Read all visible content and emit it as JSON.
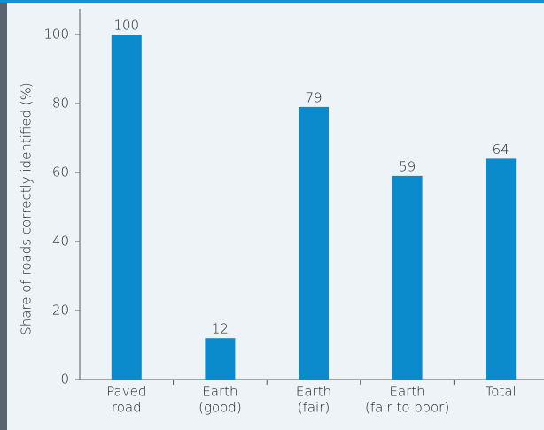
{
  "chart_data": {
    "type": "bar",
    "y_label": "Share of roads correctly identified (%)",
    "categories": [
      [
        "Paved",
        "road"
      ],
      [
        "Earth",
        "(good)"
      ],
      [
        "Earth",
        "(fair)"
      ],
      [
        "Earth",
        "(fair to poor)"
      ],
      [
        "Total"
      ]
    ],
    "values": [
      100,
      12,
      79,
      59,
      64
    ],
    "color": "#0b8bcc",
    "ylim": [
      0,
      100
    ],
    "yticks": [
      0,
      20,
      40,
      60,
      80,
      100
    ],
    "grid": false
  }
}
